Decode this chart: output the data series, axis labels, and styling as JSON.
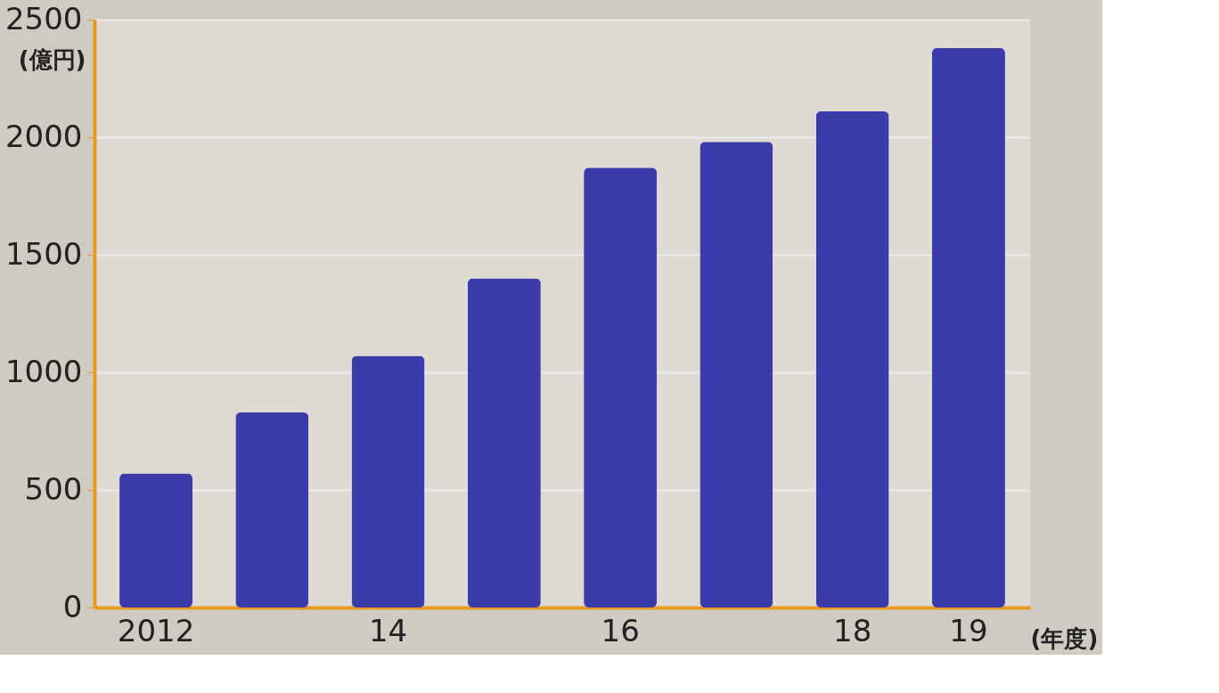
{
  "chart_data": {
    "type": "bar",
    "ylabel": "(億円)",
    "xlabel": "(年度)",
    "categories": [
      "2012",
      null,
      "14",
      null,
      "16",
      null,
      "18",
      "19"
    ],
    "values": [
      570,
      830,
      1070,
      1400,
      1870,
      1980,
      2110,
      2380
    ],
    "color": "#3b3bab",
    "ylim": [
      0,
      2500
    ],
    "yticks": [
      0,
      500,
      1000,
      1500,
      2000,
      2500
    ],
    "grid": "y"
  }
}
